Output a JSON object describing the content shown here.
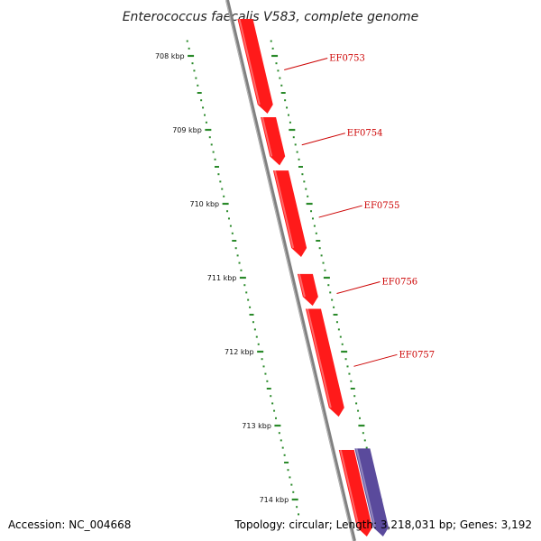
{
  "title": "Enterococcus faecalis V583, complete genome",
  "footer": {
    "accession": "Accession: NC_004668",
    "summary": "Topology: circular; Length: 3,218,031 bp; Genes: 3,192"
  },
  "colors": {
    "backbone": "#808080",
    "tick": "#2a8a2a",
    "gene_forward": "#ff1a1a",
    "gene_other": "#5a4a9c",
    "label": "#cc0000"
  },
  "axis": {
    "unit": "kbp",
    "range_bp": [
      707500,
      714500
    ],
    "major_ticks": [
      {
        "label": "708 kbp",
        "bp": 708000
      },
      {
        "label": "709 kbp",
        "bp": 709000
      },
      {
        "label": "710 kbp",
        "bp": 710000
      },
      {
        "label": "711 kbp",
        "bp": 711000
      },
      {
        "label": "712 kbp",
        "bp": 712000
      },
      {
        "label": "713 kbp",
        "bp": 713000
      },
      {
        "label": "714 kbp",
        "bp": 714000
      }
    ],
    "minor_step_bp": 100
  },
  "genes": [
    {
      "name": "EF0753",
      "start_bp": 707500,
      "end_bp": 708780,
      "strand": "forward"
    },
    {
      "name": "EF0754",
      "start_bp": 708830,
      "end_bp": 709480,
      "strand": "forward"
    },
    {
      "name": "EF0755",
      "start_bp": 709550,
      "end_bp": 710720,
      "strand": "forward"
    },
    {
      "name": "EF0756",
      "start_bp": 710950,
      "end_bp": 711380,
      "strand": "forward"
    },
    {
      "name": "EF0757",
      "start_bp": 711420,
      "end_bp": 712880,
      "strand": "forward"
    },
    {
      "name": "",
      "start_bp": 713330,
      "end_bp": 714500,
      "strand": "forward"
    },
    {
      "name": "",
      "start_bp": 713310,
      "end_bp": 714500,
      "strand": "other"
    }
  ]
}
